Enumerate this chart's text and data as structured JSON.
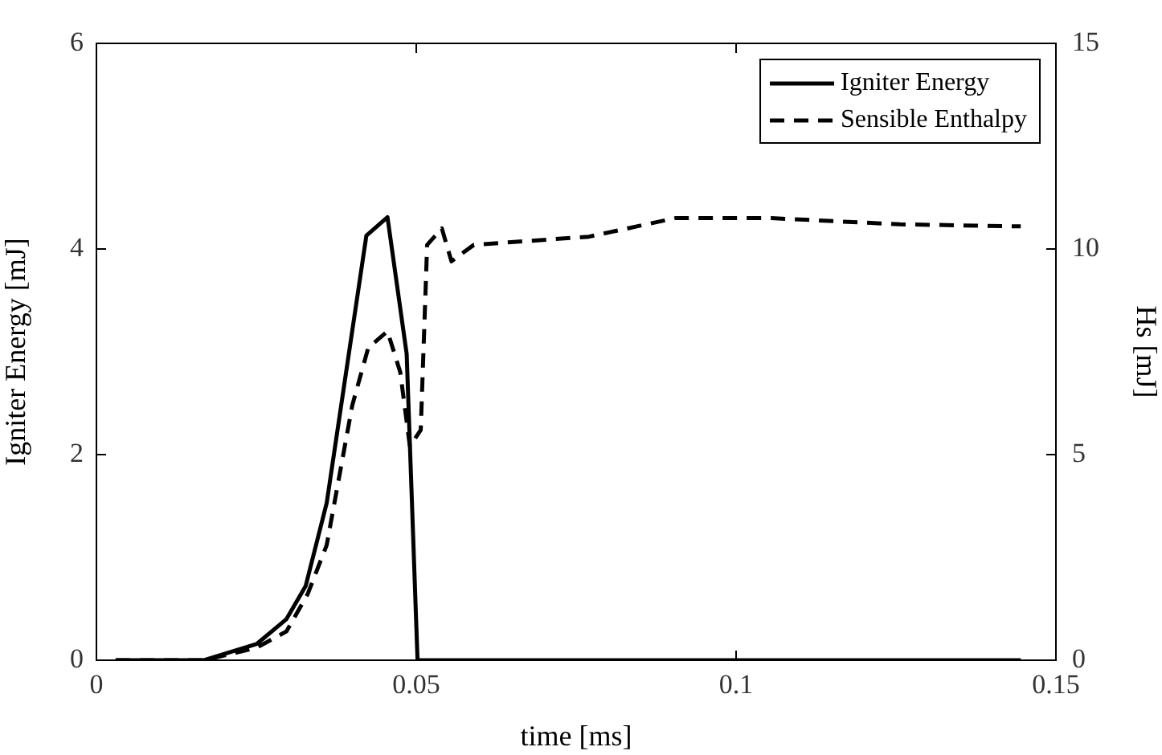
{
  "chart_data": {
    "type": "line",
    "xlabel": "time [ms]",
    "ylabel": "Igniter Energy [mJ]",
    "y2label": "Hs [mJ]",
    "xlim": [
      0,
      0.15
    ],
    "xticks": [
      0,
      0.05,
      {
        "value": 0.1,
        "label": "0.1"
      },
      0.15
    ],
    "ylim": [
      0,
      6
    ],
    "yticks": [
      0,
      2,
      4,
      6
    ],
    "y2lim": [
      0,
      15
    ],
    "y2ticks": [
      0,
      5,
      10,
      15
    ],
    "grid": false,
    "legend": "top right",
    "marker": "none",
    "series": [
      {
        "name": "Igniter Energy",
        "color": "#000000",
        "line_style": "solid",
        "x": [
          0.003,
          0.0168,
          0.0251,
          0.0297,
          0.0327,
          0.036,
          0.0422,
          0.0455,
          0.0485,
          0.0502,
          0.1445
        ],
        "values": [
          0,
          0,
          0.16,
          0.4,
          0.72,
          1.53,
          4.13,
          4.31,
          2.98,
          0,
          0
        ]
      },
      {
        "name": "Sensible Enthalpy",
        "color": "#000000",
        "line_style": "dashed",
        "axis": "y2",
        "x": [
          0.003,
          0.0168,
          0.025,
          0.0297,
          0.033,
          0.036,
          0.04,
          0.0425,
          0.0455,
          0.0475,
          0.049,
          0.0507,
          0.0517,
          0.054,
          0.0555,
          0.059,
          0.077,
          0.0905,
          0.1055,
          0.1256,
          0.1445
        ],
        "values": [
          0,
          0,
          0.3,
          0.7,
          1.6,
          2.8,
          6.2,
          7.6,
          8.0,
          7.0,
          5.2,
          5.6,
          10.1,
          10.5,
          9.7,
          10.1,
          10.3,
          10.75,
          10.75,
          10.6,
          10.55
        ]
      }
    ]
  }
}
